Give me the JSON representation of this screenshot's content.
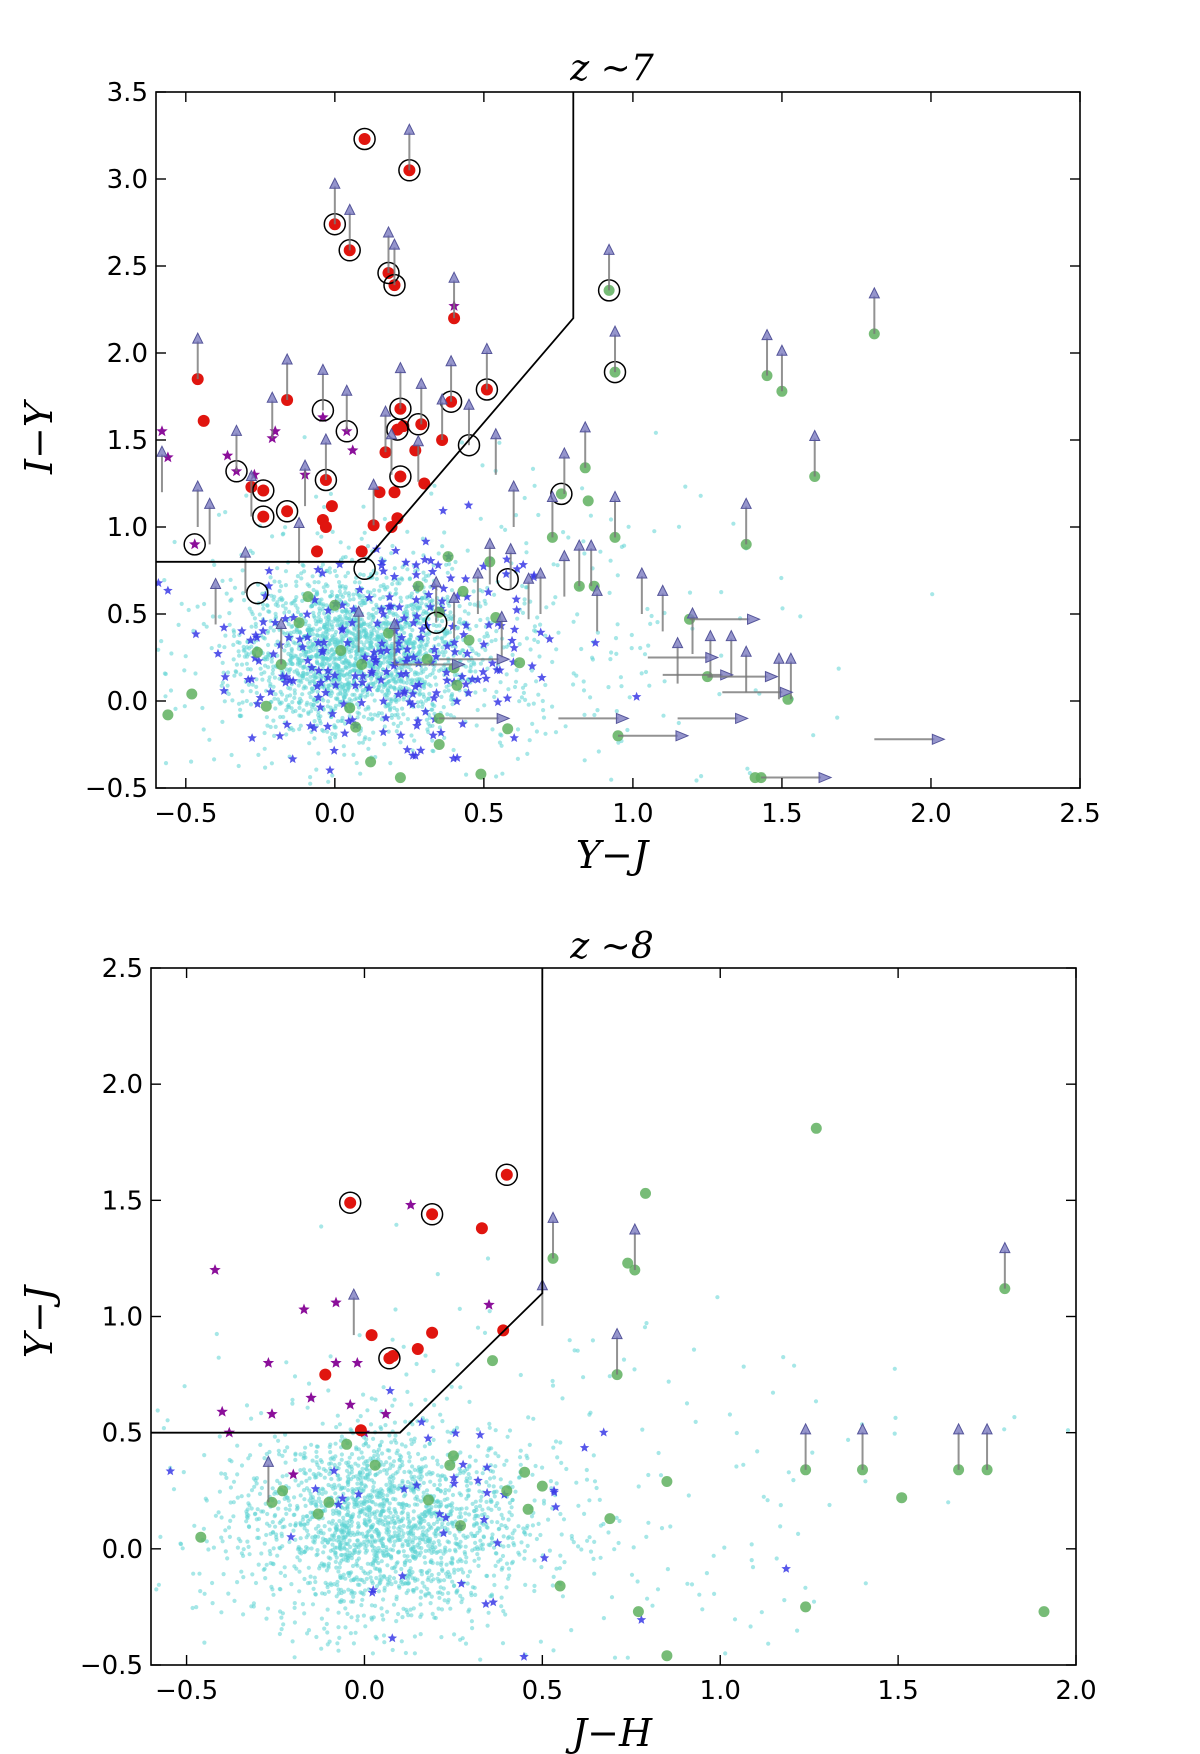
{
  "chart_data": [
    {
      "type": "scatter",
      "title": "z ~7",
      "xlabel": "Y−J",
      "ylabel": "I−Y",
      "xlim": [
        -0.6,
        2.5
      ],
      "ylim": [
        -0.5,
        3.5
      ],
      "xticks": [
        "−0.5",
        "0.0",
        "0.5",
        "1.0",
        "1.5",
        "2.0",
        "2.5"
      ],
      "yticks": [
        "−0.5",
        "0.0",
        "0.5",
        "1.0",
        "1.5",
        "2.0",
        "2.5",
        "3.0",
        "3.5"
      ],
      "colors": {
        "red": "#e0150f",
        "magenta": "#8b0f9a",
        "blue": "#3a3ae6",
        "green": "#5fb05f",
        "cyan": "#5cd4d4",
        "limit": "#7b7bbf"
      },
      "selection_box": [
        [
          -0.6,
          0.8
        ],
        [
          0.1,
          0.8
        ],
        [
          0.8,
          2.2
        ],
        [
          0.8,
          3.5
        ]
      ],
      "red": [
        [
          0.1,
          3.23
        ],
        [
          0.25,
          3.05
        ],
        [
          0.0,
          2.74
        ],
        [
          0.05,
          2.59
        ],
        [
          0.18,
          2.46
        ],
        [
          0.2,
          2.39
        ],
        [
          0.4,
          2.2
        ],
        [
          -0.46,
          1.85
        ],
        [
          -0.44,
          1.61
        ],
        [
          -0.16,
          1.73
        ],
        [
          0.51,
          1.79
        ],
        [
          0.39,
          1.72
        ],
        [
          0.22,
          1.68
        ],
        [
          0.23,
          1.58
        ],
        [
          0.21,
          1.56
        ],
        [
          0.29,
          1.59
        ],
        [
          0.36,
          1.5
        ],
        [
          0.27,
          1.44
        ],
        [
          0.17,
          1.43
        ],
        [
          0.22,
          1.29
        ],
        [
          0.3,
          1.25
        ],
        [
          -0.24,
          1.21
        ],
        [
          -0.28,
          1.23
        ],
        [
          0.2,
          1.2
        ],
        [
          0.15,
          1.2
        ],
        [
          -0.03,
          1.27
        ],
        [
          -0.04,
          1.04
        ],
        [
          -0.03,
          1.0
        ],
        [
          -0.01,
          1.12
        ],
        [
          0.13,
          1.01
        ],
        [
          0.19,
          1.0
        ],
        [
          0.21,
          1.05
        ],
        [
          -0.24,
          1.06
        ],
        [
          -0.16,
          1.09
        ],
        [
          0.09,
          0.86
        ],
        [
          -0.06,
          0.86
        ]
      ],
      "magenta": [
        [
          -0.58,
          1.55
        ],
        [
          -0.56,
          1.4
        ],
        [
          -0.36,
          1.41
        ],
        [
          -0.33,
          1.32
        ],
        [
          -0.2,
          1.55
        ],
        [
          -0.21,
          1.51
        ],
        [
          -0.04,
          1.63
        ],
        [
          0.04,
          1.55
        ],
        [
          -0.47,
          0.9
        ],
        [
          0.4,
          2.27
        ],
        [
          -0.27,
          1.3
        ],
        [
          0.06,
          1.44
        ],
        [
          -0.1,
          1.3
        ]
      ],
      "green": [
        [
          0.92,
          2.36
        ],
        [
          0.94,
          1.89
        ],
        [
          1.81,
          2.11
        ],
        [
          1.45,
          1.87
        ],
        [
          1.5,
          1.78
        ],
        [
          1.61,
          1.29
        ],
        [
          0.76,
          1.19
        ],
        [
          0.84,
          1.34
        ],
        [
          0.85,
          1.15
        ],
        [
          0.94,
          0.94
        ],
        [
          0.73,
          0.94
        ],
        [
          1.38,
          0.9
        ],
        [
          0.52,
          0.8
        ],
        [
          0.82,
          0.66
        ],
        [
          0.87,
          0.66
        ],
        [
          1.19,
          0.47
        ],
        [
          1.25,
          0.14
        ],
        [
          1.52,
          0.01
        ],
        [
          1.43,
          -0.44
        ],
        [
          1.41,
          -0.44
        ],
        [
          0.35,
          -0.1
        ],
        [
          0.35,
          -0.25
        ],
        [
          0.22,
          -0.44
        ],
        [
          0.49,
          -0.42
        ],
        [
          0.58,
          -0.16
        ],
        [
          0.95,
          -0.2
        ],
        [
          -0.56,
          -0.08
        ],
        [
          -0.48,
          0.04
        ],
        [
          -0.23,
          -0.03
        ],
        [
          0.05,
          -0.04
        ],
        [
          0.07,
          -0.15
        ],
        [
          0.12,
          -0.35
        ],
        [
          0.45,
          0.35
        ],
        [
          0.41,
          0.09
        ],
        [
          0.35,
          0.51
        ],
        [
          0.28,
          0.66
        ],
        [
          0.38,
          0.83
        ],
        [
          0.43,
          0.63
        ],
        [
          0.62,
          0.22
        ],
        [
          0.54,
          0.48
        ],
        [
          -0.18,
          0.21
        ],
        [
          -0.12,
          0.45
        ],
        [
          0.02,
          0.29
        ],
        [
          0.18,
          0.39
        ],
        [
          0.31,
          0.24
        ],
        [
          0.4,
          0.19
        ],
        [
          -0.09,
          0.6
        ],
        [
          0.0,
          0.55
        ],
        [
          -0.26,
          0.28
        ],
        [
          0.09,
          0.21
        ]
      ],
      "circled": [
        [
          0.1,
          3.23
        ],
        [
          0.25,
          3.05
        ],
        [
          0.0,
          2.74
        ],
        [
          0.05,
          2.59
        ],
        [
          0.18,
          2.46
        ],
        [
          0.2,
          2.39
        ],
        [
          0.92,
          2.36
        ],
        [
          0.94,
          1.89
        ],
        [
          0.51,
          1.79
        ],
        [
          0.39,
          1.72
        ],
        [
          0.22,
          1.68
        ],
        [
          -0.04,
          1.67
        ],
        [
          0.21,
          1.56
        ],
        [
          0.28,
          1.59
        ],
        [
          0.04,
          1.55
        ],
        [
          0.45,
          1.47
        ],
        [
          -0.33,
          1.32
        ],
        [
          0.22,
          1.29
        ],
        [
          -0.03,
          1.27
        ],
        [
          -0.24,
          1.21
        ],
        [
          0.76,
          1.19
        ],
        [
          -0.24,
          1.06
        ],
        [
          -0.16,
          1.09
        ],
        [
          -0.47,
          0.9
        ],
        [
          0.1,
          0.76
        ],
        [
          0.58,
          0.7
        ],
        [
          -0.26,
          0.62
        ],
        [
          0.34,
          0.45
        ]
      ],
      "upper_limits": [
        [
          0.25,
          3.05
        ],
        [
          0.0,
          2.74
        ],
        [
          0.05,
          2.59
        ],
        [
          0.18,
          2.46
        ],
        [
          0.92,
          2.36
        ],
        [
          0.94,
          1.89
        ],
        [
          1.81,
          2.11
        ],
        [
          1.45,
          1.87
        ],
        [
          1.5,
          1.78
        ],
        [
          1.61,
          1.29
        ],
        [
          1.38,
          0.9
        ],
        [
          -0.46,
          1.85
        ],
        [
          0.4,
          2.2
        ],
        [
          0.2,
          2.39
        ],
        [
          0.39,
          1.72
        ],
        [
          0.51,
          1.79
        ],
        [
          0.22,
          1.68
        ],
        [
          0.36,
          1.5
        ],
        [
          -0.16,
          1.73
        ],
        [
          -0.21,
          1.51
        ],
        [
          -0.33,
          1.32
        ],
        [
          -0.04,
          1.67
        ],
        [
          0.04,
          1.55
        ],
        [
          -0.03,
          1.27
        ],
        [
          0.29,
          1.59
        ],
        [
          0.17,
          1.43
        ],
        [
          -0.58,
          1.2
        ],
        [
          -0.46,
          1.0
        ],
        [
          -0.42,
          0.9
        ],
        [
          -0.28,
          1.06
        ],
        [
          -0.1,
          1.12
        ],
        [
          0.13,
          1.01
        ],
        [
          0.19,
          1.3
        ],
        [
          0.28,
          1.26
        ],
        [
          0.45,
          1.47
        ],
        [
          0.54,
          1.3
        ],
        [
          0.6,
          1.0
        ],
        [
          0.77,
          1.19
        ],
        [
          0.84,
          1.34
        ],
        [
          0.94,
          0.94
        ],
        [
          0.73,
          0.94
        ],
        [
          0.82,
          0.66
        ],
        [
          0.86,
          0.66
        ],
        [
          1.03,
          0.5
        ],
        [
          1.1,
          0.4
        ],
        [
          1.2,
          0.27
        ],
        [
          1.26,
          0.14
        ],
        [
          1.53,
          0.01
        ],
        [
          1.49,
          0.01
        ],
        [
          1.38,
          0.05
        ],
        [
          1.33,
          0.14
        ],
        [
          1.15,
          0.1
        ],
        [
          0.59,
          0.64
        ],
        [
          0.65,
          0.47
        ],
        [
          0.69,
          0.5
        ],
        [
          0.56,
          0.25
        ],
        [
          0.4,
          0.36
        ],
        [
          -0.4,
          0.44
        ],
        [
          -0.3,
          0.62
        ],
        [
          -0.18,
          0.21
        ],
        [
          0.08,
          0.28
        ],
        [
          0.34,
          0.45
        ],
        [
          0.2,
          0.21
        ],
        [
          -0.12,
          0.79
        ],
        [
          0.48,
          0.5
        ],
        [
          0.52,
          0.67
        ],
        [
          0.77,
          0.6
        ],
        [
          0.88,
          0.4
        ]
      ],
      "right_limits": [
        [
          1.19,
          0.47
        ],
        [
          1.05,
          0.25
        ],
        [
          1.1,
          0.15
        ],
        [
          1.25,
          0.14
        ],
        [
          1.3,
          0.05
        ],
        [
          1.43,
          -0.44
        ],
        [
          1.81,
          -0.22
        ],
        [
          0.35,
          -0.1
        ],
        [
          0.75,
          -0.1
        ],
        [
          0.95,
          -0.2
        ],
        [
          1.15,
          -0.1
        ],
        [
          0.35,
          0.24
        ],
        [
          0.2,
          0.21
        ]
      ]
    },
    {
      "type": "scatter",
      "title": "z ~8",
      "xlabel": "J−H",
      "ylabel": "Y−J",
      "xlim": [
        -0.6,
        2.0
      ],
      "ylim": [
        -0.5,
        2.5
      ],
      "xticks": [
        "−0.5",
        "0.0",
        "0.5",
        "1.0",
        "1.5",
        "2.0"
      ],
      "yticks": [
        "−0.5",
        "0.0",
        "0.5",
        "1.0",
        "1.5",
        "2.0",
        "2.5"
      ],
      "colors": {
        "red": "#e0150f",
        "magenta": "#8b0f9a",
        "blue": "#3a3ae6",
        "green": "#5fb05f",
        "cyan": "#5cd4d4",
        "limit": "#7b7bbf"
      },
      "selection_box": [
        [
          -0.6,
          0.5
        ],
        [
          0.1,
          0.5
        ],
        [
          0.5,
          1.1
        ],
        [
          0.5,
          2.5
        ]
      ],
      "red": [
        [
          -0.04,
          1.49
        ],
        [
          0.19,
          1.44
        ],
        [
          0.4,
          1.61
        ],
        [
          0.33,
          1.38
        ],
        [
          0.02,
          0.92
        ],
        [
          0.19,
          0.93
        ],
        [
          0.15,
          0.86
        ],
        [
          0.07,
          0.82
        ],
        [
          0.08,
          0.83
        ],
        [
          -0.11,
          0.75
        ],
        [
          0.39,
          0.94
        ],
        [
          -0.01,
          0.51
        ]
      ],
      "magenta": [
        [
          0.13,
          1.48
        ],
        [
          -0.42,
          1.2
        ],
        [
          -0.17,
          1.03
        ],
        [
          -0.08,
          1.06
        ],
        [
          -0.27,
          0.8
        ],
        [
          -0.08,
          0.8
        ],
        [
          -0.02,
          0.8
        ],
        [
          -0.15,
          0.65
        ],
        [
          -0.04,
          0.62
        ],
        [
          0.06,
          0.58
        ],
        [
          -0.26,
          0.58
        ],
        [
          -0.4,
          0.59
        ],
        [
          0.35,
          1.05
        ],
        [
          0.0,
          0.5
        ],
        [
          -0.38,
          0.5
        ],
        [
          -0.2,
          0.32
        ]
      ],
      "green": [
        [
          0.53,
          1.25
        ],
        [
          0.79,
          1.53
        ],
        [
          0.74,
          1.23
        ],
        [
          0.76,
          1.2
        ],
        [
          0.71,
          0.75
        ],
        [
          1.27,
          1.81
        ],
        [
          1.8,
          1.12
        ],
        [
          1.24,
          0.34
        ],
        [
          1.4,
          0.34
        ],
        [
          1.67,
          0.34
        ],
        [
          1.75,
          0.34
        ],
        [
          1.51,
          0.22
        ],
        [
          1.24,
          -0.25
        ],
        [
          1.91,
          -0.27
        ],
        [
          0.85,
          0.29
        ],
        [
          0.69,
          0.13
        ],
        [
          0.77,
          -0.27
        ],
        [
          0.55,
          -0.16
        ],
        [
          0.5,
          0.27
        ],
        [
          0.45,
          0.33
        ],
        [
          0.4,
          0.25
        ],
        [
          0.36,
          0.81
        ],
        [
          0.25,
          0.4
        ],
        [
          0.27,
          0.1
        ],
        [
          0.18,
          0.21
        ],
        [
          -0.1,
          0.2
        ],
        [
          -0.05,
          0.45
        ],
        [
          -0.23,
          0.25
        ],
        [
          -0.26,
          0.2
        ],
        [
          -0.46,
          0.05
        ],
        [
          0.03,
          0.36
        ],
        [
          0.46,
          0.17
        ],
        [
          0.85,
          -0.46
        ],
        [
          0.24,
          0.36
        ],
        [
          -0.13,
          0.15
        ]
      ],
      "circled": [
        [
          -0.04,
          1.49
        ],
        [
          0.19,
          1.44
        ],
        [
          0.4,
          1.61
        ],
        [
          0.07,
          0.82
        ]
      ],
      "upper_limits": [
        [
          0.53,
          1.25
        ],
        [
          0.5,
          0.96
        ],
        [
          0.76,
          1.2
        ],
        [
          0.71,
          0.75
        ],
        [
          1.8,
          1.12
        ],
        [
          1.24,
          0.34
        ],
        [
          1.4,
          0.34
        ],
        [
          1.67,
          0.34
        ],
        [
          1.75,
          0.34
        ],
        [
          -0.03,
          0.92
        ],
        [
          -0.27,
          0.2
        ]
      ],
      "right_limits": []
    }
  ]
}
